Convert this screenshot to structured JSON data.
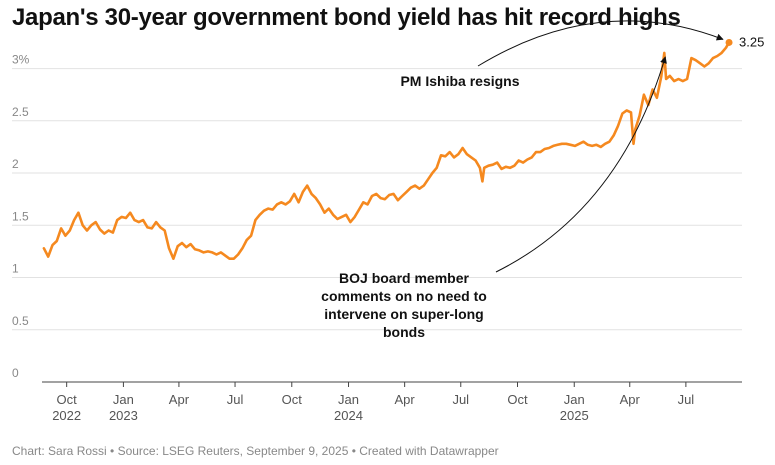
{
  "title": "Japan's 30-year government bond yield has hit record highs",
  "footer": "Chart: Sara Rossi • Source: LSEG Reuters, September 9, 2025 • Created with Datawrapper",
  "colors": {
    "line": "#f5891f",
    "grid": "#e2e2e2",
    "axis": "#444444",
    "text": "#111111",
    "muted": "#888888"
  },
  "chart_data": {
    "type": "line",
    "title": "Japan's 30-year government bond yield has hit record highs",
    "xlabel": "",
    "ylabel": "",
    "ylim": [
      0,
      3.35
    ],
    "xlim": [
      "2022-08-22",
      "2025-09-30"
    ],
    "y_ticks": [
      "0",
      "0.5",
      "1",
      "1.5",
      "2",
      "2.5",
      "3%"
    ],
    "y_tick_values": [
      0,
      0.5,
      1,
      1.5,
      2,
      2.5,
      3
    ],
    "x_ticks": [
      {
        "date": "2022-10-01",
        "label": "Oct",
        "year": "2022"
      },
      {
        "date": "2023-01-01",
        "label": "Jan",
        "year": "2023"
      },
      {
        "date": "2023-04-01",
        "label": "Apr",
        "year": ""
      },
      {
        "date": "2023-07-01",
        "label": "Jul",
        "year": ""
      },
      {
        "date": "2023-10-01",
        "label": "Oct",
        "year": ""
      },
      {
        "date": "2024-01-01",
        "label": "Jan",
        "year": "2024"
      },
      {
        "date": "2024-04-01",
        "label": "Apr",
        "year": ""
      },
      {
        "date": "2024-07-01",
        "label": "Jul",
        "year": ""
      },
      {
        "date": "2024-10-01",
        "label": "Oct",
        "year": ""
      },
      {
        "date": "2025-01-01",
        "label": "Jan",
        "year": "2025"
      },
      {
        "date": "2025-04-01",
        "label": "Apr",
        "year": ""
      },
      {
        "date": "2025-07-01",
        "label": "Jul",
        "year": ""
      }
    ],
    "series": [
      {
        "name": "Japan 30-year government bond yield",
        "end_label": "3.25",
        "points": [
          [
            "2022-08-25",
            1.28
          ],
          [
            "2022-09-01",
            1.2
          ],
          [
            "2022-09-08",
            1.31
          ],
          [
            "2022-09-15",
            1.35
          ],
          [
            "2022-09-22",
            1.47
          ],
          [
            "2022-09-29",
            1.4
          ],
          [
            "2022-10-06",
            1.45
          ],
          [
            "2022-10-13",
            1.55
          ],
          [
            "2022-10-20",
            1.62
          ],
          [
            "2022-10-27",
            1.5
          ],
          [
            "2022-11-03",
            1.45
          ],
          [
            "2022-11-10",
            1.5
          ],
          [
            "2022-11-17",
            1.53
          ],
          [
            "2022-11-24",
            1.46
          ],
          [
            "2022-12-01",
            1.42
          ],
          [
            "2022-12-08",
            1.45
          ],
          [
            "2022-12-15",
            1.43
          ],
          [
            "2022-12-22",
            1.55
          ],
          [
            "2022-12-29",
            1.58
          ],
          [
            "2023-01-05",
            1.57
          ],
          [
            "2023-01-12",
            1.62
          ],
          [
            "2023-01-19",
            1.55
          ],
          [
            "2023-01-26",
            1.53
          ],
          [
            "2023-02-02",
            1.55
          ],
          [
            "2023-02-09",
            1.48
          ],
          [
            "2023-02-16",
            1.47
          ],
          [
            "2023-02-23",
            1.53
          ],
          [
            "2023-03-02",
            1.48
          ],
          [
            "2023-03-09",
            1.45
          ],
          [
            "2023-03-16",
            1.28
          ],
          [
            "2023-03-23",
            1.18
          ],
          [
            "2023-03-30",
            1.3
          ],
          [
            "2023-04-06",
            1.33
          ],
          [
            "2023-04-13",
            1.29
          ],
          [
            "2023-04-20",
            1.32
          ],
          [
            "2023-04-27",
            1.27
          ],
          [
            "2023-05-04",
            1.26
          ],
          [
            "2023-05-11",
            1.24
          ],
          [
            "2023-05-18",
            1.25
          ],
          [
            "2023-05-25",
            1.24
          ],
          [
            "2023-06-01",
            1.22
          ],
          [
            "2023-06-08",
            1.24
          ],
          [
            "2023-06-15",
            1.21
          ],
          [
            "2023-06-22",
            1.18
          ],
          [
            "2023-06-29",
            1.18
          ],
          [
            "2023-07-06",
            1.22
          ],
          [
            "2023-07-13",
            1.28
          ],
          [
            "2023-07-20",
            1.36
          ],
          [
            "2023-07-27",
            1.4
          ],
          [
            "2023-08-03",
            1.55
          ],
          [
            "2023-08-10",
            1.6
          ],
          [
            "2023-08-17",
            1.64
          ],
          [
            "2023-08-24",
            1.66
          ],
          [
            "2023-08-31",
            1.65
          ],
          [
            "2023-09-07",
            1.7
          ],
          [
            "2023-09-14",
            1.72
          ],
          [
            "2023-09-21",
            1.7
          ],
          [
            "2023-09-28",
            1.73
          ],
          [
            "2023-10-05",
            1.8
          ],
          [
            "2023-10-12",
            1.72
          ],
          [
            "2023-10-19",
            1.82
          ],
          [
            "2023-10-26",
            1.88
          ],
          [
            "2023-11-02",
            1.8
          ],
          [
            "2023-11-09",
            1.76
          ],
          [
            "2023-11-16",
            1.7
          ],
          [
            "2023-11-23",
            1.62
          ],
          [
            "2023-11-30",
            1.66
          ],
          [
            "2023-12-07",
            1.6
          ],
          [
            "2023-12-14",
            1.56
          ],
          [
            "2023-12-21",
            1.58
          ],
          [
            "2023-12-28",
            1.6
          ],
          [
            "2024-01-04",
            1.53
          ],
          [
            "2024-01-11",
            1.58
          ],
          [
            "2024-01-18",
            1.65
          ],
          [
            "2024-01-25",
            1.72
          ],
          [
            "2024-02-01",
            1.7
          ],
          [
            "2024-02-08",
            1.78
          ],
          [
            "2024-02-15",
            1.8
          ],
          [
            "2024-02-22",
            1.76
          ],
          [
            "2024-02-29",
            1.75
          ],
          [
            "2024-03-07",
            1.79
          ],
          [
            "2024-03-14",
            1.8
          ],
          [
            "2024-03-21",
            1.74
          ],
          [
            "2024-03-28",
            1.78
          ],
          [
            "2024-04-04",
            1.82
          ],
          [
            "2024-04-11",
            1.86
          ],
          [
            "2024-04-18",
            1.88
          ],
          [
            "2024-04-25",
            1.85
          ],
          [
            "2024-05-02",
            1.88
          ],
          [
            "2024-05-09",
            1.94
          ],
          [
            "2024-05-16",
            2.0
          ],
          [
            "2024-05-23",
            2.05
          ],
          [
            "2024-05-30",
            2.17
          ],
          [
            "2024-06-06",
            2.16
          ],
          [
            "2024-06-13",
            2.2
          ],
          [
            "2024-06-20",
            2.15
          ],
          [
            "2024-06-27",
            2.18
          ],
          [
            "2024-07-04",
            2.24
          ],
          [
            "2024-07-11",
            2.18
          ],
          [
            "2024-07-18",
            2.15
          ],
          [
            "2024-07-25",
            2.12
          ],
          [
            "2024-08-01",
            2.05
          ],
          [
            "2024-08-05",
            1.92
          ],
          [
            "2024-08-08",
            2.05
          ],
          [
            "2024-08-15",
            2.07
          ],
          [
            "2024-08-22",
            2.08
          ],
          [
            "2024-08-29",
            2.1
          ],
          [
            "2024-09-05",
            2.04
          ],
          [
            "2024-09-12",
            2.06
          ],
          [
            "2024-09-19",
            2.05
          ],
          [
            "2024-09-26",
            2.07
          ],
          [
            "2024-10-03",
            2.12
          ],
          [
            "2024-10-10",
            2.1
          ],
          [
            "2024-10-17",
            2.13
          ],
          [
            "2024-10-24",
            2.15
          ],
          [
            "2024-10-31",
            2.2
          ],
          [
            "2024-11-07",
            2.2
          ],
          [
            "2024-11-14",
            2.23
          ],
          [
            "2024-11-21",
            2.24
          ],
          [
            "2024-11-28",
            2.26
          ],
          [
            "2024-12-05",
            2.27
          ],
          [
            "2024-12-12",
            2.28
          ],
          [
            "2024-12-19",
            2.28
          ],
          [
            "2024-12-26",
            2.27
          ],
          [
            "2025-01-02",
            2.26
          ],
          [
            "2025-01-09",
            2.28
          ],
          [
            "2025-01-16",
            2.3
          ],
          [
            "2025-01-23",
            2.27
          ],
          [
            "2025-01-30",
            2.26
          ],
          [
            "2025-02-06",
            2.27
          ],
          [
            "2025-02-13",
            2.25
          ],
          [
            "2025-02-20",
            2.28
          ],
          [
            "2025-02-27",
            2.3
          ],
          [
            "2025-03-06",
            2.36
          ],
          [
            "2025-03-13",
            2.45
          ],
          [
            "2025-03-20",
            2.57
          ],
          [
            "2025-03-27",
            2.6
          ],
          [
            "2025-04-03",
            2.58
          ],
          [
            "2025-04-07",
            2.28
          ],
          [
            "2025-04-10",
            2.42
          ],
          [
            "2025-04-17",
            2.55
          ],
          [
            "2025-04-24",
            2.75
          ],
          [
            "2025-05-01",
            2.65
          ],
          [
            "2025-05-08",
            2.8
          ],
          [
            "2025-05-15",
            2.72
          ],
          [
            "2025-05-22",
            2.92
          ],
          [
            "2025-05-27",
            3.15
          ],
          [
            "2025-05-30",
            2.9
          ],
          [
            "2025-06-05",
            2.93
          ],
          [
            "2025-06-12",
            2.88
          ],
          [
            "2025-06-19",
            2.9
          ],
          [
            "2025-06-26",
            2.88
          ],
          [
            "2025-07-03",
            2.9
          ],
          [
            "2025-07-10",
            3.1
          ],
          [
            "2025-07-17",
            3.08
          ],
          [
            "2025-07-24",
            3.05
          ],
          [
            "2025-07-31",
            3.02
          ],
          [
            "2025-08-07",
            3.05
          ],
          [
            "2025-08-14",
            3.1
          ],
          [
            "2025-08-21",
            3.12
          ],
          [
            "2025-08-28",
            3.15
          ],
          [
            "2025-09-04",
            3.2
          ],
          [
            "2025-09-09",
            3.25
          ]
        ]
      }
    ],
    "annotations": [
      {
        "id": "ishiba",
        "text": "PM Ishiba resigns",
        "arrow_to_date": "2025-09-09",
        "arrow_to_value": 3.25
      },
      {
        "id": "boj",
        "text_lines": [
          "BOJ board member",
          "comments on no need to",
          "intervene on super-long",
          "bonds"
        ],
        "arrow_to_date": "2025-05-27",
        "arrow_to_value": 3.15
      }
    ]
  }
}
